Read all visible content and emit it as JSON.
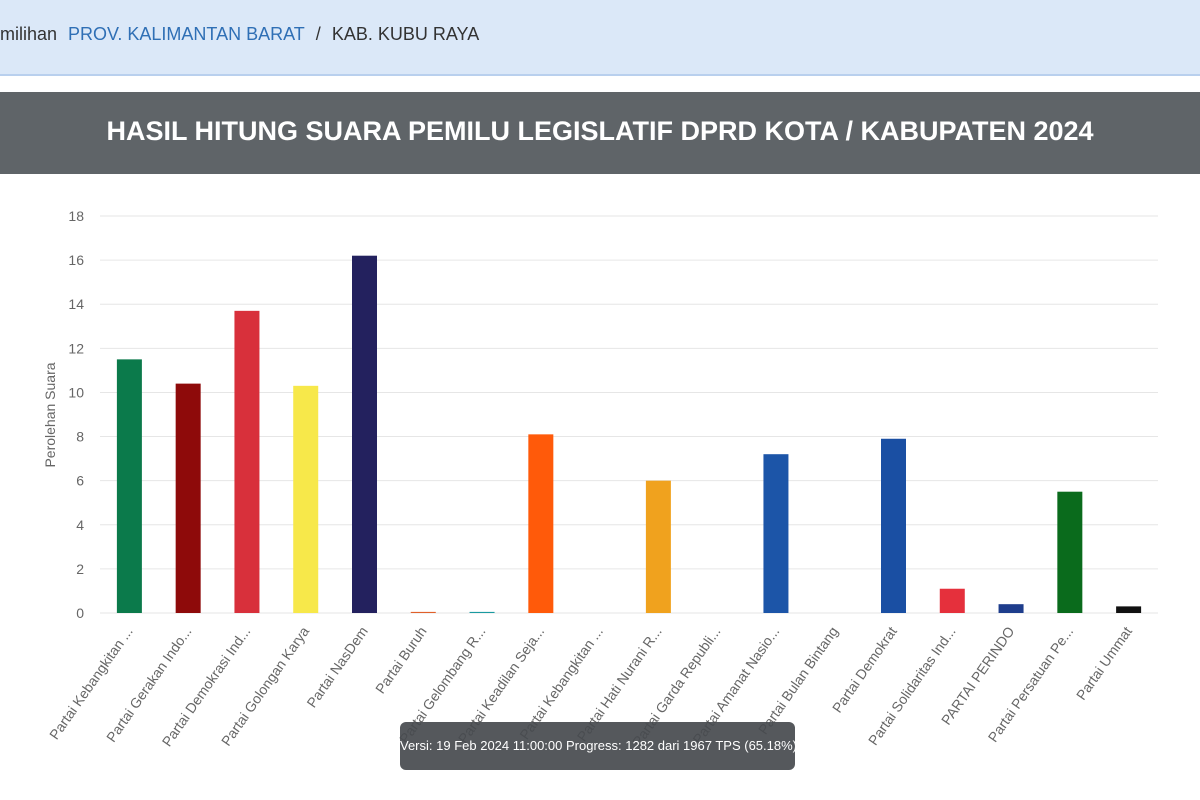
{
  "breadcrumb": {
    "first": "milihan",
    "province": "PROV. KALIMANTAN BARAT",
    "separator": "/",
    "regency": "KAB. KUBU RAYA"
  },
  "chart_data": {
    "type": "bar",
    "title": "HASIL HITUNG SUARA PEMILU LEGISLATIF DPRD KOTA / KABUPATEN 2024",
    "y_label": "Perolehan Suara",
    "categories": [
      "Partai Kebangkitan ...",
      "Partai Gerakan Indo...",
      "Partai Demokrasi Ind...",
      "Partai Golongan Karya",
      "Partai NasDem",
      "Partai Buruh",
      "Partai Gelombang R...",
      "Partai Keadilan Seja...",
      "Partai Kebangkitan ...",
      "Partai Hati Nurani R...",
      "Partai Garda Republi...",
      "Partai Amanat Nasio...",
      "Partai Bulan Bintang",
      "Partai Demokrat",
      "Partai Solidaritas Ind...",
      "PARTAI PERINDO",
      "Partai Persatuan Pe...",
      "Partai Ummat"
    ],
    "values": [
      11.5,
      10.4,
      13.7,
      10.3,
      16.2,
      0.05,
      0.05,
      8.1,
      0,
      6.0,
      0,
      7.2,
      0,
      7.9,
      1.1,
      0.4,
      5.5,
      0.3
    ],
    "colors": [
      "#0b7a4b",
      "#8e0a0a",
      "#d8303b",
      "#f7e84a",
      "#23215e",
      "#e0602a",
      "#1a9aa0",
      "#ff5a0a",
      "#cccccc",
      "#f0a21e",
      "#cccccc",
      "#1c55a8",
      "#cccccc",
      "#1a4fa3",
      "#e5303c",
      "#1e3d8c",
      "#0a6b1c",
      "#111111"
    ],
    "ylim": [
      0,
      18
    ],
    "yticks": [
      0,
      2,
      4,
      6,
      8,
      10,
      12,
      14,
      16,
      18
    ],
    "grid": true
  },
  "tooltip": "Versi: 19 Feb 2024 11:00:00 Progress: 1282 dari 1967 TPS (65.18%)"
}
